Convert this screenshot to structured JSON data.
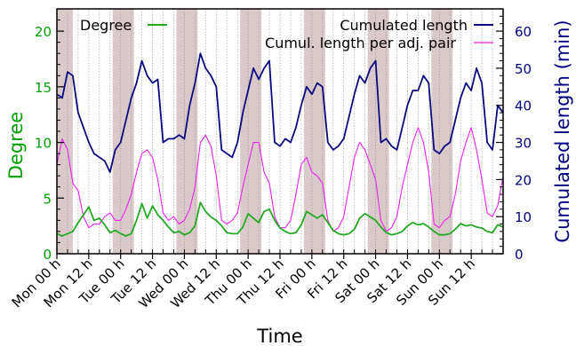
{
  "chart_data": {
    "type": "line",
    "xlabel": "Time",
    "ylabel_left": "Degree",
    "ylabel_right": "Cumulated length (min)",
    "xlim": [
      0,
      168
    ],
    "ylim_left": [
      0,
      22
    ],
    "ylim_right": [
      0,
      66
    ],
    "left_ticks": [
      0,
      5,
      10,
      15,
      20
    ],
    "right_ticks": [
      0,
      10,
      20,
      30,
      40,
      50,
      60
    ],
    "x_tick_hours": [
      0,
      12,
      24,
      36,
      48,
      60,
      72,
      84,
      96,
      108,
      120,
      132,
      144,
      156
    ],
    "x_tick_labels": [
      "Mon 00 h",
      "Mon 12 h",
      "Tue 00 h",
      "Tue 12 h",
      "Wed 00 h",
      "Wed 12 h",
      "Thu 00 h",
      "Thu 12 h",
      "Fri 00 h",
      "Fri 12 h",
      "Sat 00 h",
      "Sat 12 h",
      "Sun 00 h",
      "Sun 12 h"
    ],
    "night_bands": [
      [
        0,
        6
      ],
      [
        21,
        29
      ],
      [
        45,
        53
      ],
      [
        69,
        77
      ],
      [
        93,
        101
      ],
      [
        117,
        125
      ],
      [
        141,
        149
      ]
    ],
    "grid": "vertical-dotted",
    "legend_left": "top-left",
    "legend_right": "top-right",
    "colors": {
      "degree": "#22aa22",
      "cumulated": "#0a0a80",
      "pair": "#ee22ee",
      "night": "#d9c9c9",
      "left_axis": "#00a000",
      "right_axis": "#000080"
    },
    "series": [
      {
        "name": "Degree",
        "axis": "left",
        "x": [
          0,
          2,
          4,
          6,
          8,
          10,
          12,
          14,
          16,
          18,
          20,
          22,
          24,
          26,
          28,
          30,
          32,
          34,
          36,
          38,
          40,
          42,
          44,
          46,
          48,
          50,
          52,
          54,
          56,
          58,
          60,
          62,
          64,
          66,
          68,
          70,
          72,
          74,
          76,
          78,
          80,
          82,
          84,
          86,
          88,
          90,
          92,
          94,
          96,
          98,
          100,
          102,
          104,
          106,
          108,
          110,
          112,
          114,
          116,
          118,
          120,
          122,
          124,
          126,
          128,
          130,
          132,
          134,
          136,
          138,
          140,
          142,
          144,
          146,
          148,
          150,
          152,
          154,
          156,
          158,
          160,
          162,
          164,
          166,
          168
        ],
        "values": [
          1.8,
          1.6,
          1.8,
          2.0,
          2.8,
          3.5,
          4.2,
          3.0,
          3.2,
          2.6,
          1.9,
          2.1,
          1.8,
          1.6,
          1.8,
          3.0,
          4.5,
          3.2,
          4.3,
          3.5,
          3.0,
          2.4,
          1.9,
          2.0,
          1.7,
          1.9,
          2.5,
          4.6,
          3.8,
          3.3,
          3.0,
          2.5,
          1.9,
          1.8,
          1.8,
          2.4,
          3.6,
          3.2,
          2.8,
          3.8,
          4.0,
          3.0,
          2.3,
          2.0,
          1.8,
          1.9,
          2.6,
          3.8,
          3.5,
          3.2,
          3.5,
          2.8,
          2.1,
          1.8,
          1.7,
          1.8,
          2.2,
          3.2,
          3.6,
          3.3,
          3.0,
          2.4,
          1.9,
          1.7,
          1.8,
          2.0,
          2.5,
          2.8,
          2.6,
          2.7,
          2.4,
          2.0,
          1.7,
          1.7,
          1.8,
          2.2,
          2.7,
          2.5,
          2.6,
          2.4,
          2.3,
          2.0,
          1.9,
          2.6,
          2.4
        ]
      },
      {
        "name": "Cumulated length",
        "axis": "right",
        "x": [
          0,
          2,
          4,
          6,
          8,
          10,
          12,
          14,
          16,
          18,
          20,
          22,
          24,
          26,
          28,
          30,
          32,
          34,
          36,
          38,
          40,
          42,
          44,
          46,
          48,
          50,
          52,
          54,
          56,
          58,
          60,
          62,
          64,
          66,
          68,
          70,
          72,
          74,
          76,
          78,
          80,
          82,
          84,
          86,
          88,
          90,
          92,
          94,
          96,
          98,
          100,
          102,
          104,
          106,
          108,
          110,
          112,
          114,
          116,
          118,
          120,
          122,
          124,
          126,
          128,
          130,
          132,
          134,
          136,
          138,
          140,
          142,
          144,
          146,
          148,
          150,
          152,
          154,
          156,
          158,
          160,
          162,
          164,
          166,
          168
        ],
        "values": [
          43,
          42,
          49,
          48,
          38,
          34,
          30,
          27,
          26,
          25,
          22,
          28,
          30,
          36,
          42,
          46,
          52,
          48,
          46,
          47,
          30,
          31,
          31,
          32,
          31,
          40,
          46,
          54,
          50,
          48,
          45,
          28,
          27,
          26,
          30,
          38,
          44,
          50,
          47,
          50,
          52,
          30,
          29,
          31,
          30,
          34,
          40,
          45,
          43,
          46,
          45,
          30,
          28,
          29,
          31,
          37,
          43,
          48,
          46,
          50,
          52,
          30,
          31,
          29,
          28,
          34,
          40,
          44,
          44,
          48,
          46,
          28,
          27,
          29,
          30,
          36,
          42,
          46,
          44,
          50,
          46,
          30,
          28,
          40,
          38
        ]
      },
      {
        "name": "Cumul. length per adj. pair",
        "axis": "right",
        "x": [
          0,
          2,
          4,
          6,
          8,
          10,
          12,
          14,
          16,
          18,
          20,
          22,
          24,
          26,
          28,
          30,
          32,
          34,
          36,
          38,
          40,
          42,
          44,
          46,
          48,
          50,
          52,
          54,
          56,
          58,
          60,
          62,
          64,
          66,
          68,
          70,
          72,
          74,
          76,
          78,
          80,
          82,
          84,
          86,
          88,
          90,
          92,
          94,
          96,
          98,
          100,
          102,
          104,
          106,
          108,
          110,
          112,
          114,
          116,
          118,
          120,
          122,
          124,
          126,
          128,
          130,
          132,
          134,
          136,
          138,
          140,
          142,
          144,
          146,
          148,
          150,
          152,
          154,
          156,
          158,
          160,
          162,
          164,
          166,
          168
        ],
        "values": [
          24,
          31,
          28,
          19,
          17,
          10,
          7,
          8,
          8,
          10,
          11,
          9,
          9,
          12,
          16,
          22,
          27,
          28,
          26,
          20,
          11,
          9,
          10,
          8,
          9,
          12,
          18,
          30,
          32,
          29,
          21,
          9,
          8,
          9,
          11,
          18,
          24,
          30,
          30,
          22,
          19,
          10,
          7,
          7,
          9,
          16,
          24,
          26,
          22,
          21,
          19,
          9,
          6,
          7,
          10,
          18,
          26,
          30,
          28,
          24,
          20,
          9,
          6,
          7,
          10,
          18,
          24,
          30,
          34,
          30,
          22,
          8,
          7,
          9,
          10,
          16,
          25,
          30,
          34,
          28,
          20,
          11,
          10,
          13,
          21
        ]
      }
    ]
  }
}
